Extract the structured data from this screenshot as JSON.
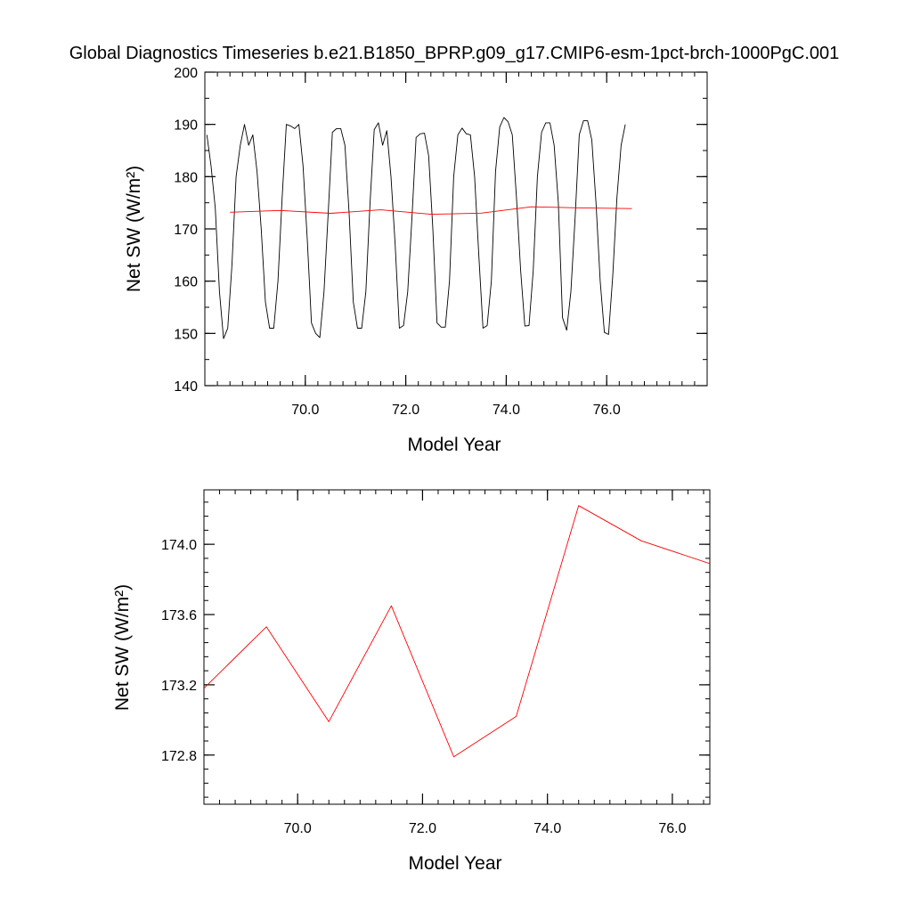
{
  "title": "Global Diagnostics Timeseries b.e21.B1850_BPRP.g09_g17.CMIP6-esm-1pct-brch-1000PgC.001",
  "colors": {
    "monthly": "#000000",
    "annual": "#ff0000",
    "background": "#ffffff"
  },
  "chart_data": [
    {
      "type": "line",
      "xlabel": "Model Year",
      "ylabel": "Net SW (W/m²)",
      "xlim": [
        68.0,
        78.0
      ],
      "ylim": [
        140,
        200
      ],
      "x_ticks": [
        70.0,
        72.0,
        74.0,
        76.0
      ],
      "x_tick_labels": [
        "70.0",
        "72.0",
        "74.0",
        "76.0"
      ],
      "y_ticks": [
        140,
        150,
        160,
        170,
        180,
        190,
        200
      ],
      "y_tick_labels": [
        "140",
        "150",
        "160",
        "170",
        "180",
        "190",
        "200"
      ],
      "grid": false,
      "series": [
        {
          "color": "#000000",
          "x_start": 68.04,
          "x_step": 0.0833,
          "values": [
            188,
            182,
            174,
            158,
            149,
            151,
            163,
            180,
            186,
            190,
            186,
            188,
            181,
            170,
            156,
            151,
            151,
            160,
            176,
            190,
            189.7,
            189.2,
            190,
            182,
            168,
            152,
            150,
            149.2,
            158,
            173,
            188.5,
            189.2,
            189.2,
            186,
            173,
            156,
            151,
            151,
            158,
            175,
            189,
            190.3,
            186,
            188.8,
            180,
            167,
            151,
            151.5,
            158,
            172,
            187.5,
            188.2,
            188.3,
            184,
            170,
            152,
            151.2,
            151.2,
            160,
            180,
            188,
            189.3,
            188.2,
            188,
            180,
            165,
            151,
            151.5,
            160,
            181,
            189.5,
            191.3,
            190.5,
            188,
            176,
            162,
            151.4,
            151.5,
            162,
            180,
            188.5,
            190.3,
            190.3,
            186,
            175,
            153,
            150.6,
            158,
            172,
            188,
            190.7,
            190.7,
            187,
            175,
            160,
            150.2,
            149.8,
            161,
            176,
            186,
            190
          ]
        },
        {
          "color": "#ff0000",
          "x": [
            68.5,
            69.5,
            70.5,
            71.5,
            72.5,
            73.5,
            74.5,
            75.5,
            76.5
          ],
          "values": [
            173.18,
            173.53,
            172.99,
            173.65,
            172.79,
            173.02,
            174.22,
            174.02,
            173.89
          ]
        }
      ]
    },
    {
      "type": "line",
      "xlabel": "Model Year",
      "ylabel": "Net SW (W/m²)",
      "xlim": [
        68.5,
        76.6
      ],
      "ylim": [
        172.52,
        174.31
      ],
      "x_ticks": [
        70.0,
        72.0,
        74.0,
        76.0
      ],
      "x_tick_labels": [
        "70.0",
        "72.0",
        "74.0",
        "76.0"
      ],
      "y_ticks": [
        172.8,
        173.2,
        173.6,
        174.0
      ],
      "y_tick_labels": [
        "172.8",
        "173.2",
        "173.6",
        "174.0"
      ],
      "grid": false,
      "series": [
        {
          "color": "#ff0000",
          "x": [
            68.5,
            69.5,
            70.5,
            71.5,
            72.5,
            73.5,
            74.5,
            75.5,
            76.6
          ],
          "values": [
            173.18,
            173.53,
            172.99,
            173.65,
            172.79,
            173.02,
            174.22,
            174.02,
            173.89
          ]
        }
      ]
    }
  ]
}
